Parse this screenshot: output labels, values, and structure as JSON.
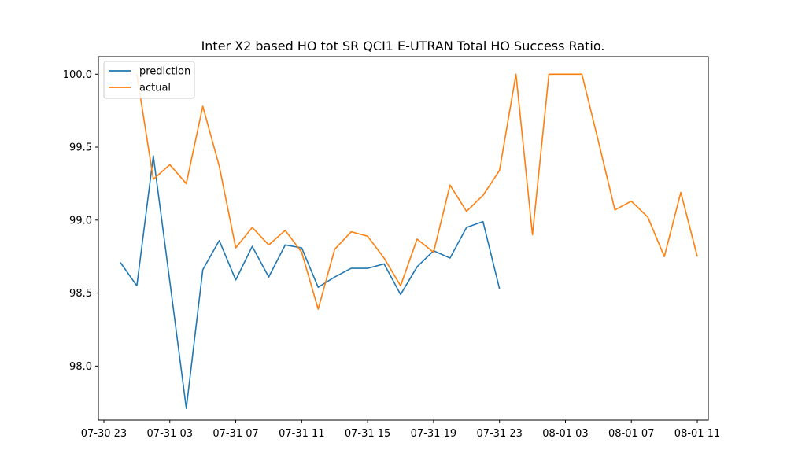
{
  "chart_data": {
    "type": "line",
    "title": "Inter X2 based HO tot SR QCI1 E-UTRAN Total HO Success Ratio.",
    "xlabel": "",
    "ylabel": "",
    "x_tick_labels": [
      "07-30 23",
      "07-31 03",
      "07-31 07",
      "07-31 11",
      "07-31 15",
      "07-31 19",
      "07-31 23",
      "08-01 03",
      "08-01 07",
      "08-01 11"
    ],
    "y_tick_labels": [
      "98.0",
      "98.5",
      "99.0",
      "99.5",
      "100.0"
    ],
    "y_ticks": [
      98.0,
      98.5,
      99.0,
      99.5,
      100.0
    ],
    "ylim": [
      97.63,
      100.12
    ],
    "x_start": "07-30 23:00",
    "x_end": "08-01 11:00",
    "xlim": [
      "07-30 22:40",
      "08-01 11:40"
    ],
    "time_step": "1 hour",
    "legend_position": "upper left",
    "grid": false,
    "series": [
      {
        "name": "prediction",
        "color": "#1f77b4",
        "x": [
          "07-31 00:00",
          "07-31 01:00",
          "07-31 02:00",
          "07-31 03:00",
          "07-31 04:00",
          "07-31 05:00",
          "07-31 06:00",
          "07-31 07:00",
          "07-31 08:00",
          "07-31 09:00",
          "07-31 10:00",
          "07-31 11:00",
          "07-31 12:00",
          "07-31 13:00",
          "07-31 14:00",
          "07-31 15:00",
          "07-31 16:00",
          "07-31 17:00",
          "07-31 18:00",
          "07-31 19:00",
          "07-31 20:00",
          "07-31 21:00",
          "07-31 22:00",
          "07-31 23:00"
        ],
        "values": [
          98.71,
          98.55,
          99.44,
          98.58,
          97.71,
          98.66,
          98.86,
          98.59,
          98.82,
          98.61,
          98.83,
          98.81,
          98.54,
          98.61,
          98.67,
          98.67,
          98.7,
          98.49,
          98.68,
          98.79,
          98.74,
          98.95,
          98.99,
          98.53
        ]
      },
      {
        "name": "actual",
        "color": "#ff7f0e",
        "x": [
          "07-31 01:00",
          "07-31 02:00",
          "07-31 03:00",
          "07-31 04:00",
          "07-31 05:00",
          "07-31 06:00",
          "07-31 07:00",
          "07-31 08:00",
          "07-31 09:00",
          "07-31 10:00",
          "07-31 11:00",
          "07-31 12:00",
          "07-31 13:00",
          "07-31 14:00",
          "07-31 15:00",
          "07-31 16:00",
          "07-31 17:00",
          "07-31 18:00",
          "07-31 19:00",
          "07-31 20:00",
          "07-31 21:00",
          "07-31 22:00",
          "07-31 23:00",
          "08-01 00:00",
          "08-01 01:00",
          "08-01 02:00",
          "08-01 03:00",
          "08-01 04:00",
          "08-01 05:00",
          "08-01 06:00",
          "08-01 07:00",
          "08-01 08:00",
          "08-01 09:00",
          "08-01 10:00",
          "08-01 11:00"
        ],
        "values": [
          100.0,
          99.28,
          99.38,
          99.25,
          99.78,
          99.37,
          98.81,
          98.95,
          98.83,
          98.93,
          98.78,
          98.39,
          98.8,
          98.92,
          98.89,
          98.74,
          98.55,
          98.87,
          98.78,
          99.24,
          99.06,
          99.17,
          99.34,
          100.0,
          98.9,
          100.0,
          100.0,
          100.0,
          99.54,
          99.07,
          99.13,
          99.02,
          98.75,
          99.19,
          98.75
        ]
      }
    ]
  }
}
